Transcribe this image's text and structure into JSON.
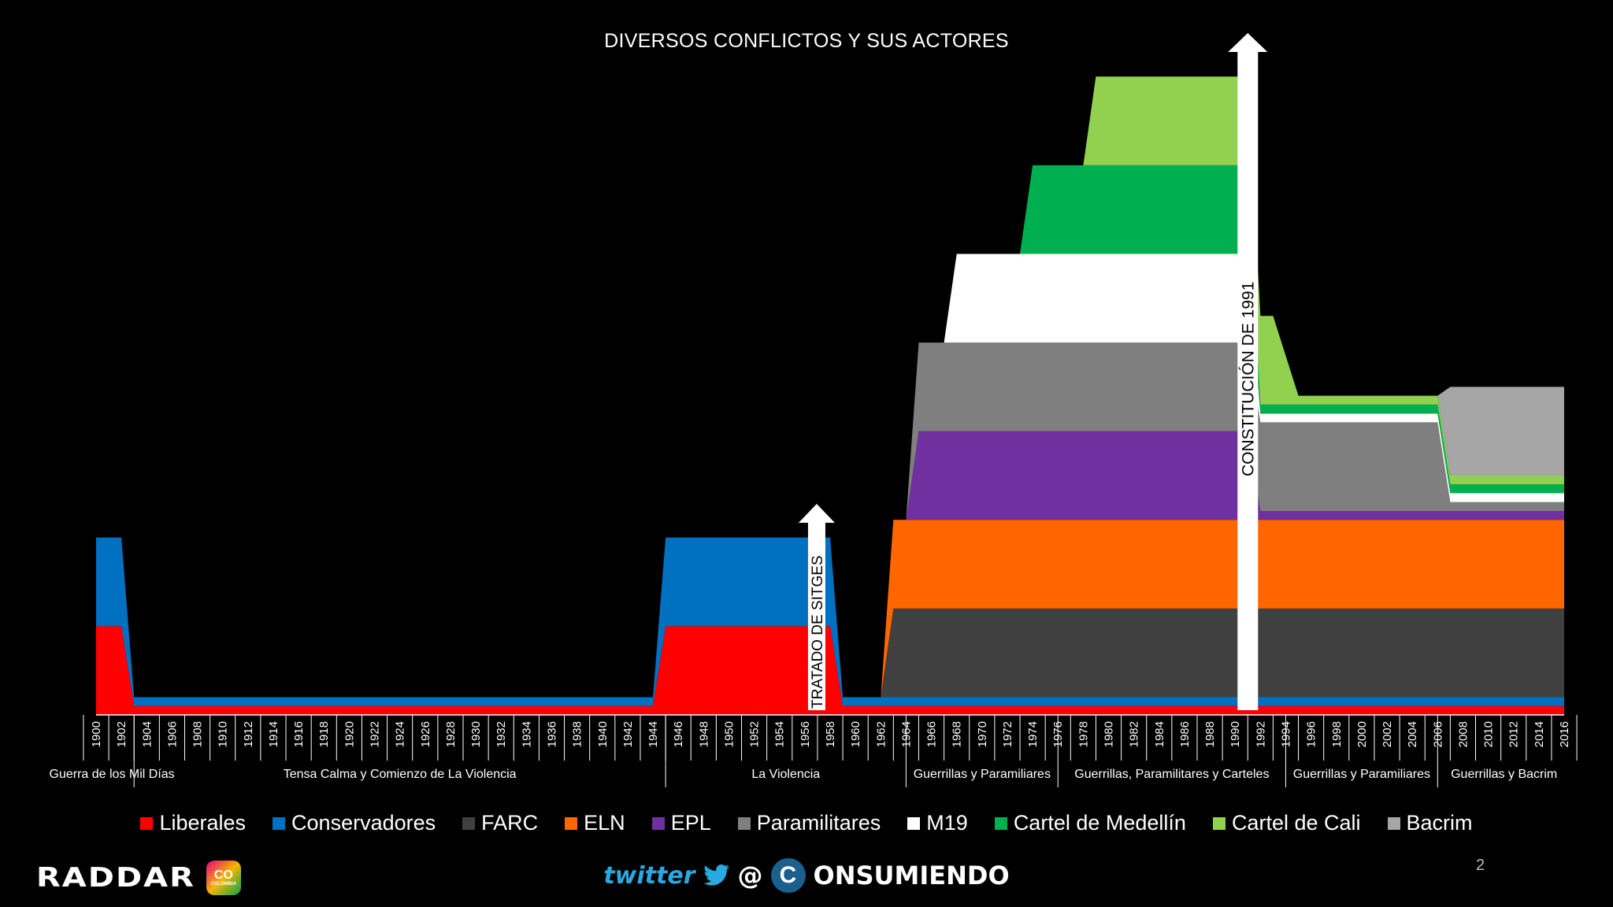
{
  "chart_data": {
    "type": "area",
    "title": "DIVERSOS CONFLICTOS Y SUS ACTORES",
    "x_range": [
      1900,
      2016
    ],
    "y_unit": "level",
    "ylim": [
      0,
      7.2
    ],
    "x_ticks": [
      1900,
      1902,
      1904,
      1906,
      1908,
      1910,
      1912,
      1914,
      1916,
      1918,
      1920,
      1922,
      1924,
      1926,
      1928,
      1930,
      1932,
      1934,
      1936,
      1938,
      1940,
      1942,
      1944,
      1946,
      1948,
      1950,
      1952,
      1954,
      1956,
      1958,
      1960,
      1962,
      1964,
      1966,
      1968,
      1970,
      1972,
      1974,
      1976,
      1978,
      1980,
      1982,
      1984,
      1986,
      1988,
      1990,
      1992,
      1994,
      1996,
      1998,
      2000,
      2002,
      2004,
      2006,
      2008,
      2010,
      2012,
      2014,
      2016
    ],
    "series": [
      {
        "name": "Liberales",
        "color": "#ff0000",
        "points": [
          [
            1900,
            1
          ],
          [
            1902,
            1
          ],
          [
            1903,
            0.1
          ],
          [
            1944,
            0.1
          ],
          [
            1945,
            1
          ],
          [
            1958,
            1
          ],
          [
            1959,
            0.1
          ],
          [
            2016,
            0.1
          ]
        ]
      },
      {
        "name": "Conservadores",
        "color": "#0070c0",
        "points": [
          [
            1900,
            1
          ],
          [
            1902,
            1
          ],
          [
            1903,
            0.1
          ],
          [
            1944,
            0.1
          ],
          [
            1945,
            1
          ],
          [
            1958,
            1
          ],
          [
            1959,
            0.1
          ],
          [
            2016,
            0.1
          ]
        ]
      },
      {
        "name": "FARC",
        "color": "#404040",
        "points": [
          [
            1962,
            0
          ],
          [
            1963,
            1
          ],
          [
            2016,
            1
          ]
        ]
      },
      {
        "name": "ELN",
        "color": "#ff6600",
        "points": [
          [
            1962,
            0
          ],
          [
            1963,
            1
          ],
          [
            2016,
            1
          ]
        ]
      },
      {
        "name": "EPL",
        "color": "#7030a0",
        "points": [
          [
            1964,
            0
          ],
          [
            1965,
            1
          ],
          [
            1991,
            1
          ],
          [
            1992,
            0.1
          ],
          [
            2016,
            0.1
          ]
        ]
      },
      {
        "name": "Paramilitares",
        "color": "#7f7f7f",
        "points": [
          [
            1964,
            0
          ],
          [
            1965,
            1
          ],
          [
            1991,
            1
          ],
          [
            1992,
            1
          ],
          [
            2006,
            1
          ],
          [
            2007,
            0.1
          ],
          [
            2016,
            0.1
          ]
        ]
      },
      {
        "name": "M19",
        "color": "#ffffff",
        "points": [
          [
            1967,
            0
          ],
          [
            1968,
            1
          ],
          [
            1991,
            1
          ],
          [
            1992,
            0.1
          ],
          [
            2006,
            0.1
          ],
          [
            2007,
            0.1
          ],
          [
            2016,
            0.1
          ]
        ]
      },
      {
        "name": "Cartel de Medellín",
        "color": "#00b050",
        "points": [
          [
            1973,
            0
          ],
          [
            1974,
            1
          ],
          [
            1991,
            1
          ],
          [
            1992,
            0.1
          ],
          [
            2006,
            0.1
          ],
          [
            2007,
            0.1
          ],
          [
            2016,
            0.1
          ]
        ]
      },
      {
        "name": "Cartel de Cali",
        "color": "#92d050",
        "points": [
          [
            1978,
            0
          ],
          [
            1979,
            1
          ],
          [
            1991,
            1
          ],
          [
            1993,
            1
          ],
          [
            1995,
            0.1
          ],
          [
            2016,
            0.1
          ]
        ]
      },
      {
        "name": "Bacrim",
        "color": "#a6a6a6",
        "points": [
          [
            2006,
            0
          ],
          [
            2007,
            1
          ],
          [
            2016,
            1
          ]
        ]
      }
    ],
    "annotations": [
      {
        "label": "TRATADO DE SITGES",
        "year": 1957
      },
      {
        "label": "CONSTITUCIÓN DE 1991",
        "year": 1991
      }
    ],
    "periods": [
      {
        "label": "Guerra de los Mil Días",
        "start": 1899.5,
        "end": 1903
      },
      {
        "label": "Tensa Calma y Comienzo de La Violencia",
        "start": 1903,
        "end": 1945
      },
      {
        "label": "La Violencia",
        "start": 1945,
        "end": 1964
      },
      {
        "label": "Guerrillas y Paramiliares",
        "start": 1964,
        "end": 1976
      },
      {
        "label": "Guerrillas, Paramilitares y Carteles",
        "start": 1976,
        "end": 1994
      },
      {
        "label": "Guerrillas y Paramiliares",
        "start": 1994,
        "end": 2006
      },
      {
        "label": "Guerrillas y Bacrim",
        "start": 2006,
        "end": 2016.5
      }
    ]
  },
  "legend": [
    {
      "label": "Liberales",
      "color": "#ff0000"
    },
    {
      "label": "Conservadores",
      "color": "#0070c0"
    },
    {
      "label": "FARC",
      "color": "#404040"
    },
    {
      "label": "ELN",
      "color": "#ff6600"
    },
    {
      "label": "EPL",
      "color": "#7030a0"
    },
    {
      "label": "Paramilitares",
      "color": "#7f7f7f"
    },
    {
      "label": "M19",
      "color": "#ffffff"
    },
    {
      "label": "Cartel de Medellín",
      "color": "#00b050"
    },
    {
      "label": "Cartel de Cali",
      "color": "#92d050"
    },
    {
      "label": "Bacrim",
      "color": "#a6a6a6"
    }
  ],
  "footer": {
    "brand": "RADDAR",
    "badge": "CO",
    "badge_sub": "COLOMBIA",
    "twitter_word": "twitter",
    "handle_at": "@",
    "handle_c": "C",
    "handle_rest": "ONSUMIENDO",
    "page_number": "2"
  }
}
